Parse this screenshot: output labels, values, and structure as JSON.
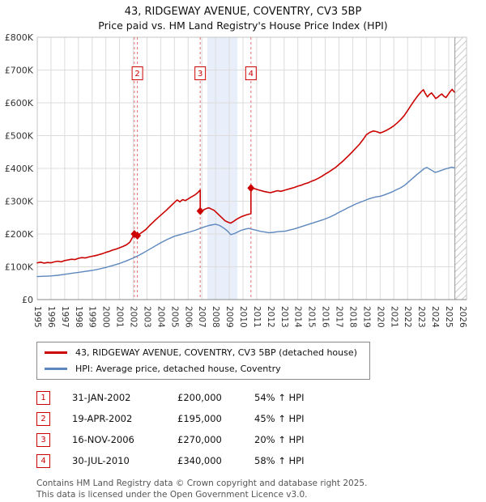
{
  "chart_data": {
    "type": "line",
    "title": "43, RIDGEWAY AVENUE, COVENTRY, CV3 5BP",
    "subtitle": "Price paid vs. HM Land Registry's House Price Index (HPI)",
    "units": "GBP thousands",
    "xlim": [
      1995,
      2026.3
    ],
    "ylim": [
      0,
      800
    ],
    "grid": true,
    "x_ticks": [
      1995,
      1996,
      1997,
      1998,
      1999,
      2000,
      2001,
      2002,
      2003,
      2004,
      2005,
      2006,
      2007,
      2008,
      2009,
      2010,
      2011,
      2012,
      2013,
      2014,
      2015,
      2016,
      2017,
      2018,
      2019,
      2020,
      2021,
      2022,
      2023,
      2024,
      2025,
      2026
    ],
    "y_ticks": [
      [
        0,
        "£0"
      ],
      [
        100,
        "£100K"
      ],
      [
        200,
        "£200K"
      ],
      [
        300,
        "£300K"
      ],
      [
        400,
        "£400K"
      ],
      [
        500,
        "£500K"
      ],
      [
        600,
        "£600K"
      ],
      [
        700,
        "£700K"
      ],
      [
        800,
        "£800K"
      ]
    ],
    "recession_band": {
      "x0": 2007.4,
      "x1": 2009.6,
      "color": "#e9effa"
    },
    "future_band": {
      "x0": 2025.45
    },
    "sale_lines": [
      {
        "num": "1",
        "x": 2002.08,
        "boxed": false
      },
      {
        "num": "2",
        "x": 2002.3,
        "boxed": true
      },
      {
        "num": "3",
        "x": 2006.88,
        "boxed": true
      },
      {
        "num": "4",
        "x": 2010.58,
        "boxed": true
      }
    ],
    "sale_markers": [
      [
        2002.08,
        200
      ],
      [
        2002.3,
        195
      ],
      [
        2006.88,
        270
      ],
      [
        2010.58,
        340
      ]
    ],
    "box_y": 690,
    "colors": {
      "accent_red": "#cc0000",
      "hpi_blue": "#5c87bd",
      "dashed": "#e07070",
      "grid": "#dcdcdc"
    },
    "series": [
      {
        "name": "43, RIDGEWAY AVENUE, COVENTRY, CV3 5BP (detached house)",
        "color": "#cc0000",
        "points": [
          [
            1995.0,
            112
          ],
          [
            1995.25,
            114
          ],
          [
            1995.5,
            111
          ],
          [
            1995.75,
            113
          ],
          [
            1996.0,
            112
          ],
          [
            1996.25,
            115
          ],
          [
            1996.5,
            117
          ],
          [
            1996.75,
            115
          ],
          [
            1997.0,
            119
          ],
          [
            1997.25,
            121
          ],
          [
            1997.5,
            123
          ],
          [
            1997.75,
            122
          ],
          [
            1998.0,
            126
          ],
          [
            1998.25,
            128
          ],
          [
            1998.5,
            127
          ],
          [
            1998.75,
            130
          ],
          [
            1999.0,
            132
          ],
          [
            1999.25,
            134
          ],
          [
            1999.5,
            137
          ],
          [
            1999.75,
            140
          ],
          [
            2000.0,
            144
          ],
          [
            2000.25,
            147
          ],
          [
            2000.5,
            151
          ],
          [
            2000.75,
            154
          ],
          [
            2001.0,
            158
          ],
          [
            2001.25,
            162
          ],
          [
            2001.5,
            167
          ],
          [
            2001.75,
            175
          ],
          [
            2002.08,
            200
          ],
          [
            2002.3,
            195
          ],
          [
            2002.6,
            204
          ],
          [
            2002.9,
            213
          ],
          [
            2003.2,
            226
          ],
          [
            2003.5,
            238
          ],
          [
            2003.8,
            250
          ],
          [
            2004.1,
            261
          ],
          [
            2004.4,
            272
          ],
          [
            2004.7,
            284
          ],
          [
            2005.0,
            296
          ],
          [
            2005.2,
            304
          ],
          [
            2005.4,
            298
          ],
          [
            2005.6,
            305
          ],
          [
            2005.8,
            302
          ],
          [
            2006.0,
            307
          ],
          [
            2006.2,
            312
          ],
          [
            2006.45,
            318
          ],
          [
            2006.7,
            326
          ],
          [
            2006.88,
            334
          ],
          [
            2006.88,
            270
          ],
          [
            2007.1,
            273
          ],
          [
            2007.3,
            277
          ],
          [
            2007.5,
            280
          ],
          [
            2007.7,
            276
          ],
          [
            2007.9,
            272
          ],
          [
            2008.1,
            264
          ],
          [
            2008.3,
            256
          ],
          [
            2008.5,
            248
          ],
          [
            2008.7,
            240
          ],
          [
            2008.9,
            236
          ],
          [
            2009.1,
            233
          ],
          [
            2009.3,
            238
          ],
          [
            2009.5,
            244
          ],
          [
            2009.7,
            249
          ],
          [
            2009.9,
            253
          ],
          [
            2010.1,
            256
          ],
          [
            2010.3,
            259
          ],
          [
            2010.58,
            262
          ],
          [
            2010.58,
            340
          ],
          [
            2010.8,
            339
          ],
          [
            2011.0,
            336
          ],
          [
            2011.25,
            333
          ],
          [
            2011.5,
            330
          ],
          [
            2011.75,
            328
          ],
          [
            2012.0,
            326
          ],
          [
            2012.25,
            329
          ],
          [
            2012.5,
            332
          ],
          [
            2012.75,
            330
          ],
          [
            2013.0,
            333
          ],
          [
            2013.25,
            336
          ],
          [
            2013.5,
            339
          ],
          [
            2013.75,
            342
          ],
          [
            2014.0,
            346
          ],
          [
            2014.25,
            349
          ],
          [
            2014.5,
            353
          ],
          [
            2014.75,
            356
          ],
          [
            2015.0,
            361
          ],
          [
            2015.25,
            365
          ],
          [
            2015.5,
            370
          ],
          [
            2015.75,
            376
          ],
          [
            2016.0,
            383
          ],
          [
            2016.25,
            389
          ],
          [
            2016.5,
            396
          ],
          [
            2016.75,
            403
          ],
          [
            2017.0,
            412
          ],
          [
            2017.25,
            421
          ],
          [
            2017.5,
            431
          ],
          [
            2017.75,
            441
          ],
          [
            2018.0,
            452
          ],
          [
            2018.25,
            463
          ],
          [
            2018.5,
            474
          ],
          [
            2018.75,
            488
          ],
          [
            2019.0,
            503
          ],
          [
            2019.25,
            510
          ],
          [
            2019.5,
            514
          ],
          [
            2019.75,
            512
          ],
          [
            2020.0,
            508
          ],
          [
            2020.25,
            512
          ],
          [
            2020.5,
            517
          ],
          [
            2020.75,
            523
          ],
          [
            2021.0,
            530
          ],
          [
            2021.25,
            539
          ],
          [
            2021.5,
            549
          ],
          [
            2021.75,
            561
          ],
          [
            2022.0,
            576
          ],
          [
            2022.25,
            592
          ],
          [
            2022.5,
            608
          ],
          [
            2022.75,
            622
          ],
          [
            2023.0,
            634
          ],
          [
            2023.15,
            640
          ],
          [
            2023.3,
            628
          ],
          [
            2023.45,
            618
          ],
          [
            2023.6,
            626
          ],
          [
            2023.75,
            630
          ],
          [
            2023.9,
            622
          ],
          [
            2024.05,
            613
          ],
          [
            2024.2,
            617
          ],
          [
            2024.35,
            623
          ],
          [
            2024.5,
            627
          ],
          [
            2024.65,
            620
          ],
          [
            2024.8,
            616
          ],
          [
            2024.95,
            625
          ],
          [
            2025.1,
            634
          ],
          [
            2025.25,
            641
          ],
          [
            2025.4,
            633
          ]
        ]
      },
      {
        "name": "HPI: Average price, detached house, Coventry",
        "color": "#5c87bd",
        "points": [
          [
            1995.0,
            70
          ],
          [
            1995.5,
            71
          ],
          [
            1996.0,
            72
          ],
          [
            1996.5,
            74
          ],
          [
            1997.0,
            77
          ],
          [
            1997.5,
            80
          ],
          [
            1998.0,
            83
          ],
          [
            1998.5,
            86
          ],
          [
            1999.0,
            89
          ],
          [
            1999.5,
            93
          ],
          [
            2000.0,
            98
          ],
          [
            2000.5,
            104
          ],
          [
            2001.0,
            110
          ],
          [
            2001.5,
            118
          ],
          [
            2002.0,
            127
          ],
          [
            2002.5,
            137
          ],
          [
            2003.0,
            149
          ],
          [
            2003.5,
            161
          ],
          [
            2004.0,
            173
          ],
          [
            2004.5,
            184
          ],
          [
            2005.0,
            193
          ],
          [
            2005.5,
            199
          ],
          [
            2006.0,
            205
          ],
          [
            2006.5,
            211
          ],
          [
            2007.0,
            219
          ],
          [
            2007.5,
            226
          ],
          [
            2008.0,
            230
          ],
          [
            2008.3,
            226
          ],
          [
            2008.6,
            218
          ],
          [
            2008.9,
            208
          ],
          [
            2009.1,
            198
          ],
          [
            2009.35,
            201
          ],
          [
            2009.6,
            206
          ],
          [
            2009.85,
            211
          ],
          [
            2010.1,
            214
          ],
          [
            2010.4,
            217
          ],
          [
            2010.7,
            214
          ],
          [
            2011.0,
            211
          ],
          [
            2011.3,
            208
          ],
          [
            2011.6,
            206
          ],
          [
            2011.9,
            204
          ],
          [
            2012.2,
            205
          ],
          [
            2012.5,
            207
          ],
          [
            2012.8,
            208
          ],
          [
            2013.1,
            209
          ],
          [
            2013.4,
            212
          ],
          [
            2013.7,
            215
          ],
          [
            2014.0,
            219
          ],
          [
            2014.3,
            223
          ],
          [
            2014.6,
            227
          ],
          [
            2014.9,
            231
          ],
          [
            2015.2,
            235
          ],
          [
            2015.5,
            239
          ],
          [
            2015.8,
            243
          ],
          [
            2016.1,
            248
          ],
          [
            2016.4,
            253
          ],
          [
            2016.7,
            259
          ],
          [
            2017.0,
            266
          ],
          [
            2017.3,
            272
          ],
          [
            2017.6,
            279
          ],
          [
            2017.9,
            285
          ],
          [
            2018.2,
            291
          ],
          [
            2018.5,
            296
          ],
          [
            2018.8,
            301
          ],
          [
            2019.1,
            306
          ],
          [
            2019.4,
            310
          ],
          [
            2019.7,
            313
          ],
          [
            2020.0,
            315
          ],
          [
            2020.3,
            319
          ],
          [
            2020.6,
            324
          ],
          [
            2020.9,
            329
          ],
          [
            2021.2,
            335
          ],
          [
            2021.5,
            341
          ],
          [
            2021.8,
            349
          ],
          [
            2022.1,
            360
          ],
          [
            2022.4,
            371
          ],
          [
            2022.7,
            382
          ],
          [
            2023.0,
            392
          ],
          [
            2023.2,
            399
          ],
          [
            2023.4,
            403
          ],
          [
            2023.6,
            398
          ],
          [
            2023.8,
            393
          ],
          [
            2024.0,
            388
          ],
          [
            2024.2,
            390
          ],
          [
            2024.4,
            393
          ],
          [
            2024.6,
            396
          ],
          [
            2024.8,
            399
          ],
          [
            2025.0,
            401
          ],
          [
            2025.2,
            404
          ],
          [
            2025.4,
            402
          ]
        ]
      }
    ]
  },
  "sales_table": {
    "rows": [
      {
        "num": "1",
        "date": "31-JAN-2002",
        "price": "£200,000",
        "hpi": "54% ↑ HPI"
      },
      {
        "num": "2",
        "date": "19-APR-2002",
        "price": "£195,000",
        "hpi": "45% ↑ HPI"
      },
      {
        "num": "3",
        "date": "16-NOV-2006",
        "price": "£270,000",
        "hpi": "20% ↑ HPI"
      },
      {
        "num": "4",
        "date": "30-JUL-2010",
        "price": "£340,000",
        "hpi": "58% ↑ HPI"
      }
    ]
  },
  "footer": {
    "line1": "Contains HM Land Registry data © Crown copyright and database right 2025.",
    "line2": "This data is licensed under the Open Government Licence v3.0."
  }
}
